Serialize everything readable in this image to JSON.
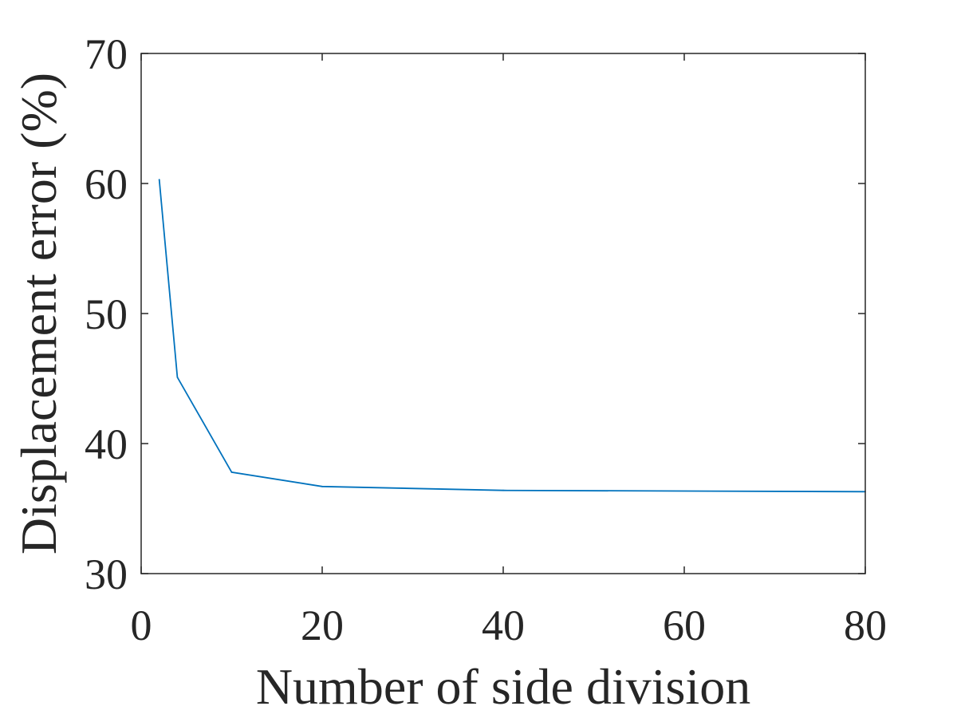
{
  "chart_data": {
    "type": "line",
    "title": "",
    "xlabel": "Number of side division",
    "ylabel": "Displacement error (%)",
    "xlim": [
      0,
      80
    ],
    "ylim": [
      30,
      70
    ],
    "xticks": [
      0,
      20,
      40,
      60,
      80
    ],
    "yticks": [
      30,
      40,
      50,
      60,
      70
    ],
    "xtick_labels": [
      "0",
      "20",
      "40",
      "60",
      "80"
    ],
    "ytick_labels": [
      "30",
      "40",
      "50",
      "60",
      "70"
    ],
    "grid": false,
    "legend": "none",
    "series": [
      {
        "color": "#0072BD",
        "x": [
          2,
          4,
          10,
          20,
          40,
          80
        ],
        "y": [
          60.3,
          45.1,
          37.8,
          36.7,
          36.4,
          36.3
        ]
      }
    ]
  }
}
